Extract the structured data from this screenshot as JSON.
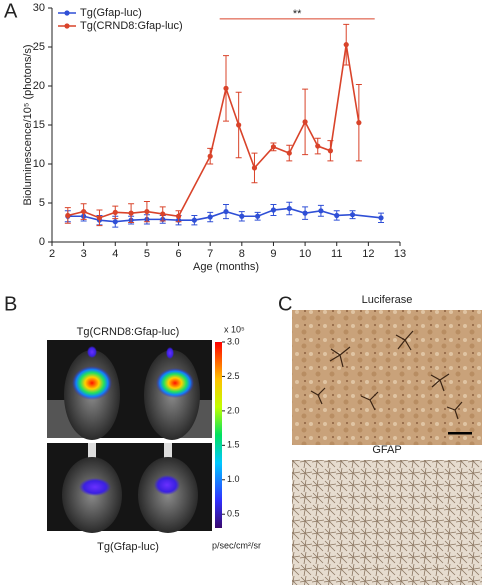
{
  "chart_data": {
    "type": "line",
    "panel": "A",
    "ylabel": "Bioluminescence/10⁵ (photons/s)",
    "xlabel": "Age (months)",
    "xlim": [
      2,
      13
    ],
    "xticks": [
      2,
      3,
      4,
      5,
      6,
      7,
      8,
      9,
      10,
      11,
      12,
      13
    ],
    "ylim": [
      0,
      30
    ],
    "yticks": [
      0,
      5,
      10,
      15,
      20,
      25,
      30
    ],
    "legend": "top-left",
    "annotation": {
      "text": "**",
      "x": [
        7.3,
        12.2
      ],
      "y": 28.6,
      "color": "#d9432a"
    },
    "series": [
      {
        "name": "Tg(Gfap-luc)",
        "color": "#2f4fd6",
        "x": [
          2.5,
          3,
          3.5,
          4,
          4.5,
          5,
          5.5,
          6,
          6.5,
          7,
          7.5,
          8,
          8.5,
          9,
          9.5,
          10,
          10.5,
          11,
          11.5,
          12.4
        ],
        "values": [
          3.3,
          3.3,
          2.8,
          2.6,
          2.8,
          2.9,
          2.9,
          2.8,
          2.8,
          3.2,
          3.9,
          3.3,
          3.3,
          4.1,
          4.3,
          3.7,
          4.0,
          3.4,
          3.5,
          3.1
        ],
        "errors": [
          0.7,
          0.6,
          0.6,
          0.7,
          0.5,
          0.6,
          0.5,
          0.6,
          0.6,
          0.6,
          0.9,
          0.6,
          0.5,
          0.7,
          0.8,
          0.8,
          0.7,
          0.6,
          0.5,
          0.6
        ]
      },
      {
        "name": "Tg(CRND8:Gfap-luc)",
        "color": "#d9432a",
        "x": [
          2.5,
          3,
          3.5,
          4,
          4.5,
          5,
          5.5,
          6,
          7,
          7.5,
          7.9,
          8.4,
          9,
          9.5,
          10,
          10.4,
          10.8,
          11.3,
          11.7
        ],
        "values": [
          3.4,
          3.9,
          3.1,
          3.8,
          3.7,
          3.9,
          3.6,
          3.3,
          11.0,
          19.7,
          15.0,
          9.5,
          12.2,
          11.4,
          15.4,
          12.3,
          11.7,
          25.3,
          15.3
        ],
        "errors": [
          1.0,
          1.0,
          1.0,
          0.8,
          1.2,
          1.3,
          0.9,
          0.7,
          1.0,
          4.2,
          4.2,
          1.9,
          0.5,
          1.0,
          4.2,
          1.0,
          1.3,
          2.6,
          4.9
        ]
      }
    ]
  },
  "panel_b": {
    "label": "B",
    "top_caption": "Tg(CRND8:Gfap-luc)",
    "bottom_caption": "Tg(Gfap-luc)",
    "colorbar": {
      "scale": "x 10⁵",
      "unit": "p/sec/cm²/sr",
      "lim": [
        0.3,
        3.0
      ],
      "ticks": [
        {
          "value": 3.0,
          "label": "3.0"
        },
        {
          "value": 2.5,
          "label": "2.5"
        },
        {
          "value": 2.0,
          "label": "2.0"
        },
        {
          "value": 1.5,
          "label": "1.5"
        },
        {
          "value": 1.0,
          "label": "1.0"
        },
        {
          "value": 0.5,
          "label": "0.5"
        }
      ]
    }
  },
  "panel_c": {
    "label": "C",
    "top_caption": "Luciferase",
    "bottom_caption": "GFAP"
  }
}
